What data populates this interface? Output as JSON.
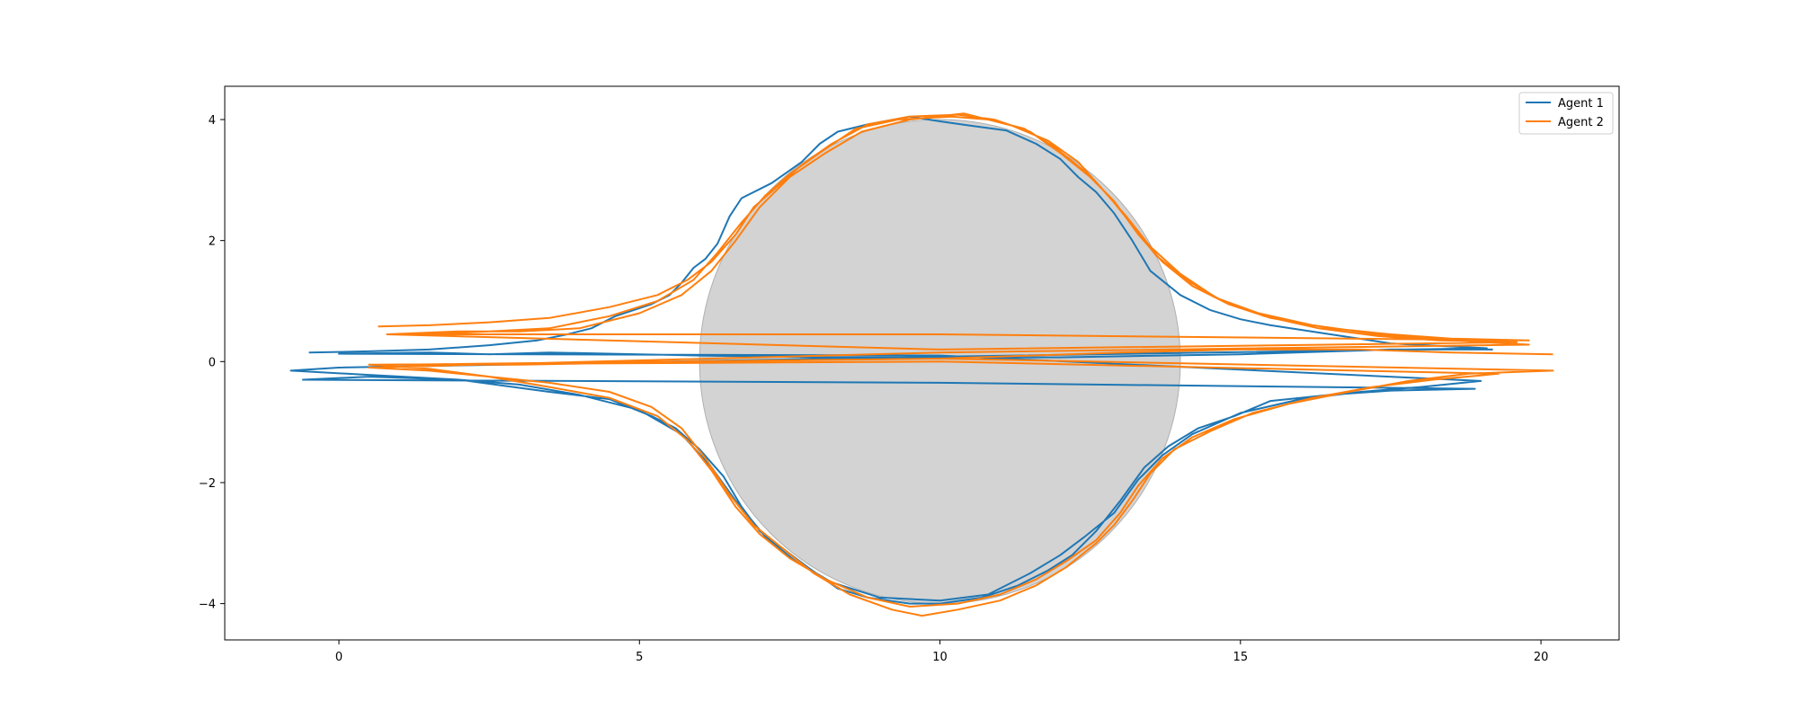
{
  "chart_data": {
    "type": "line",
    "title": "",
    "xlabel": "",
    "ylabel": "",
    "xlim": [
      -1.9,
      21.3
    ],
    "ylim": [
      -4.6,
      4.55
    ],
    "xticks": [
      0,
      5,
      10,
      15,
      20
    ],
    "yticks": [
      -4,
      -2,
      0,
      2,
      4
    ],
    "xtick_labels": [
      "0",
      "5",
      "10",
      "15",
      "20"
    ],
    "ytick_labels": [
      "−4",
      "−2",
      "0",
      "2",
      "4"
    ],
    "grid": false,
    "legend_position": "top-right",
    "obstacle": {
      "shape": "circle",
      "center": [
        10,
        0
      ],
      "radius": 4,
      "color": "#d3d3d3"
    },
    "series": [
      {
        "name": "Agent 1",
        "color": "#1f77b4",
        "paths": [
          [
            [
              -0.5,
              0.15
            ],
            [
              0.5,
              0.17
            ],
            [
              1.5,
              0.2
            ],
            [
              2.5,
              0.27
            ],
            [
              3.3,
              0.35
            ],
            [
              3.8,
              0.45
            ],
            [
              4.2,
              0.55
            ],
            [
              4.6,
              0.75
            ],
            [
              5.2,
              0.95
            ],
            [
              5.5,
              1.1
            ],
            [
              5.7,
              1.3
            ],
            [
              5.9,
              1.55
            ],
            [
              6.1,
              1.7
            ],
            [
              6.3,
              1.95
            ],
            [
              6.5,
              2.4
            ],
            [
              6.7,
              2.7
            ],
            [
              7.2,
              2.95
            ],
            [
              7.7,
              3.3
            ],
            [
              8.0,
              3.6
            ],
            [
              8.3,
              3.8
            ],
            [
              8.8,
              3.92
            ],
            [
              9.5,
              4.05
            ],
            [
              10.0,
              3.97
            ],
            [
              10.5,
              3.9
            ],
            [
              11.1,
              3.82
            ],
            [
              11.6,
              3.6
            ],
            [
              12.0,
              3.35
            ],
            [
              12.3,
              3.05
            ],
            [
              12.6,
              2.8
            ],
            [
              12.9,
              2.45
            ],
            [
              13.2,
              2.0
            ],
            [
              13.5,
              1.5
            ],
            [
              14.0,
              1.1
            ],
            [
              14.5,
              0.85
            ],
            [
              15.0,
              0.7
            ],
            [
              15.5,
              0.6
            ],
            [
              16.5,
              0.45
            ],
            [
              17.5,
              0.3
            ],
            [
              18.5,
              0.25
            ],
            [
              19.1,
              0.22
            ],
            [
              10.0,
              0.08
            ],
            [
              0,
              -0.1
            ],
            [
              -0.8,
              -0.15
            ],
            [
              0.5,
              -0.22
            ],
            [
              2.0,
              -0.3
            ],
            [
              3.5,
              -0.5
            ],
            [
              4.5,
              -0.62
            ],
            [
              5.2,
              -0.9
            ],
            [
              5.6,
              -1.1
            ],
            [
              6.0,
              -1.45
            ],
            [
              6.4,
              -1.9
            ],
            [
              6.7,
              -2.4
            ],
            [
              7.0,
              -2.8
            ],
            [
              7.4,
              -3.1
            ],
            [
              7.8,
              -3.4
            ],
            [
              8.3,
              -3.75
            ],
            [
              8.8,
              -3.9
            ],
            [
              9.5,
              -4.0
            ],
            [
              10.0,
              -4.0
            ],
            [
              10.7,
              -3.9
            ],
            [
              11.3,
              -3.7
            ],
            [
              11.8,
              -3.45
            ],
            [
              12.2,
              -3.2
            ],
            [
              12.6,
              -2.8
            ],
            [
              13.0,
              -2.3
            ],
            [
              13.4,
              -1.75
            ],
            [
              13.8,
              -1.4
            ],
            [
              14.3,
              -1.1
            ],
            [
              14.9,
              -0.9
            ],
            [
              15.5,
              -0.65
            ],
            [
              16.5,
              -0.55
            ],
            [
              17.5,
              -0.48
            ],
            [
              18.9,
              -0.45
            ],
            [
              10.0,
              -0.35
            ],
            [
              -0.6,
              -0.3
            ],
            [
              0.5,
              -0.25
            ],
            [
              2.0,
              -0.3
            ],
            [
              3.0,
              -0.38
            ],
            [
              4.0,
              -0.55
            ],
            [
              5.0,
              -0.8
            ],
            [
              5.7,
              -1.2
            ],
            [
              6.2,
              -1.75
            ],
            [
              6.6,
              -2.3
            ],
            [
              7.1,
              -2.9
            ],
            [
              7.6,
              -3.3
            ],
            [
              8.2,
              -3.65
            ],
            [
              9.0,
              -3.9
            ],
            [
              10.0,
              -3.95
            ],
            [
              10.8,
              -3.85
            ],
            [
              11.5,
              -3.5
            ],
            [
              12.0,
              -3.2
            ],
            [
              12.4,
              -2.9
            ],
            [
              12.9,
              -2.5
            ],
            [
              13.3,
              -1.95
            ],
            [
              13.7,
              -1.55
            ],
            [
              14.2,
              -1.2
            ],
            [
              15.0,
              -0.85
            ],
            [
              16.0,
              -0.62
            ],
            [
              17.0,
              -0.5
            ],
            [
              18.0,
              -0.42
            ],
            [
              19.0,
              -0.32
            ],
            [
              10.0,
              0.1
            ],
            [
              0,
              0.13
            ],
            [
              1.5,
              0.15
            ],
            [
              2.5,
              0.12
            ],
            [
              3.5,
              0.15
            ],
            [
              5.0,
              0.12
            ],
            [
              6.0,
              0.1
            ],
            [
              8.0,
              0.07
            ],
            [
              12.0,
              0.07
            ],
            [
              15.0,
              0.12
            ],
            [
              17.5,
              0.2
            ],
            [
              19.2,
              0.2
            ]
          ]
        ]
      },
      {
        "name": "Agent 2",
        "color": "#ff7f0e",
        "paths": [
          [
            [
              0.65,
              0.58
            ],
            [
              1.5,
              0.6
            ],
            [
              2.5,
              0.65
            ],
            [
              3.5,
              0.72
            ],
            [
              4.5,
              0.9
            ],
            [
              5.3,
              1.1
            ],
            [
              5.8,
              1.35
            ],
            [
              6.2,
              1.65
            ],
            [
              6.6,
              2.1
            ],
            [
              6.9,
              2.55
            ],
            [
              7.3,
              2.9
            ],
            [
              7.7,
              3.25
            ],
            [
              8.2,
              3.6
            ],
            [
              8.8,
              3.92
            ],
            [
              9.5,
              4.05
            ],
            [
              10.3,
              4.08
            ],
            [
              10.9,
              4.0
            ],
            [
              11.5,
              3.8
            ],
            [
              12.0,
              3.45
            ],
            [
              12.5,
              3.05
            ],
            [
              12.9,
              2.65
            ],
            [
              13.3,
              2.1
            ],
            [
              13.7,
              1.65
            ],
            [
              14.2,
              1.25
            ],
            [
              14.8,
              0.95
            ],
            [
              15.5,
              0.72
            ],
            [
              16.5,
              0.55
            ],
            [
              17.5,
              0.45
            ],
            [
              18.5,
              0.38
            ],
            [
              19.8,
              0.35
            ],
            [
              10,
              0.45
            ],
            [
              0.8,
              0.45
            ],
            [
              1.5,
              0.45
            ],
            [
              2.5,
              0.5
            ],
            [
              3.5,
              0.55
            ],
            [
              4.5,
              0.75
            ],
            [
              5.3,
              1.0
            ],
            [
              5.9,
              1.35
            ],
            [
              6.3,
              1.8
            ],
            [
              6.7,
              2.3
            ],
            [
              7.1,
              2.75
            ],
            [
              7.5,
              3.1
            ],
            [
              8.0,
              3.45
            ],
            [
              8.6,
              3.85
            ],
            [
              9.3,
              4.0
            ],
            [
              10.2,
              4.05
            ],
            [
              10.8,
              4.0
            ],
            [
              11.4,
              3.85
            ],
            [
              11.9,
              3.55
            ],
            [
              12.4,
              3.15
            ],
            [
              12.8,
              2.75
            ],
            [
              13.2,
              2.25
            ],
            [
              13.6,
              1.75
            ],
            [
              14.1,
              1.35
            ],
            [
              14.7,
              1.0
            ],
            [
              15.4,
              0.75
            ],
            [
              16.3,
              0.55
            ],
            [
              17.3,
              0.42
            ],
            [
              18.3,
              0.35
            ],
            [
              19.6,
              0.32
            ],
            [
              10,
              0.2
            ],
            [
              0.8,
              0.45
            ],
            [
              2.0,
              0.5
            ],
            [
              3.0,
              0.5
            ],
            [
              4.0,
              0.55
            ],
            [
              5.0,
              0.8
            ],
            [
              5.7,
              1.1
            ],
            [
              6.2,
              1.5
            ],
            [
              6.6,
              2.0
            ],
            [
              7.0,
              2.55
            ],
            [
              7.5,
              3.05
            ],
            [
              8.1,
              3.45
            ],
            [
              8.7,
              3.8
            ],
            [
              9.5,
              4.0
            ],
            [
              10.4,
              4.1
            ],
            [
              11.2,
              3.9
            ],
            [
              11.8,
              3.65
            ],
            [
              12.3,
              3.3
            ],
            [
              12.7,
              2.85
            ],
            [
              13.1,
              2.4
            ],
            [
              13.5,
              1.9
            ],
            [
              14.0,
              1.45
            ],
            [
              14.6,
              1.05
            ],
            [
              15.3,
              0.8
            ],
            [
              16.2,
              0.6
            ],
            [
              17.3,
              0.45
            ],
            [
              18.5,
              0.35
            ],
            [
              19.8,
              0.28
            ],
            [
              10,
              0.15
            ],
            [
              0.5,
              -0.1
            ],
            [
              1.5,
              -0.15
            ],
            [
              2.5,
              -0.25
            ],
            [
              3.5,
              -0.35
            ],
            [
              4.5,
              -0.5
            ],
            [
              5.2,
              -0.75
            ],
            [
              5.7,
              -1.1
            ],
            [
              6.1,
              -1.6
            ],
            [
              6.5,
              -2.2
            ],
            [
              6.9,
              -2.7
            ],
            [
              7.4,
              -3.1
            ],
            [
              7.9,
              -3.5
            ],
            [
              8.5,
              -3.85
            ],
            [
              9.2,
              -4.1
            ],
            [
              9.7,
              -4.2
            ],
            [
              10.3,
              -4.1
            ],
            [
              11.0,
              -3.95
            ],
            [
              11.6,
              -3.7
            ],
            [
              12.1,
              -3.4
            ],
            [
              12.6,
              -3.0
            ],
            [
              12.9,
              -2.7
            ],
            [
              13.2,
              -2.3
            ],
            [
              13.5,
              -1.85
            ],
            [
              13.9,
              -1.45
            ],
            [
              14.5,
              -1.15
            ],
            [
              15.2,
              -0.85
            ],
            [
              16.2,
              -0.6
            ],
            [
              17.2,
              -0.42
            ],
            [
              18.2,
              -0.3
            ],
            [
              19.3,
              -0.2
            ],
            [
              10,
              0
            ],
            [
              0.5,
              -0.05
            ],
            [
              1.5,
              -0.12
            ],
            [
              2.5,
              -0.25
            ],
            [
              3.5,
              -0.42
            ],
            [
              4.5,
              -0.6
            ],
            [
              5.3,
              -0.9
            ],
            [
              5.8,
              -1.3
            ],
            [
              6.2,
              -1.8
            ],
            [
              6.6,
              -2.4
            ],
            [
              7.0,
              -2.85
            ],
            [
              7.5,
              -3.25
            ],
            [
              8.1,
              -3.6
            ],
            [
              8.8,
              -3.9
            ],
            [
              9.5,
              -4.05
            ],
            [
              10.3,
              -4.0
            ],
            [
              11.0,
              -3.85
            ],
            [
              11.6,
              -3.6
            ],
            [
              12.1,
              -3.3
            ],
            [
              12.6,
              -2.95
            ],
            [
              13.0,
              -2.5
            ],
            [
              13.3,
              -2.05
            ],
            [
              13.7,
              -1.6
            ],
            [
              14.2,
              -1.25
            ],
            [
              14.9,
              -0.95
            ],
            [
              15.8,
              -0.7
            ],
            [
              16.8,
              -0.5
            ],
            [
              17.8,
              -0.32
            ],
            [
              18.8,
              -0.2
            ],
            [
              20.2,
              -0.15
            ],
            [
              10,
              0.05
            ],
            [
              1.0,
              -0.05
            ],
            [
              3.0,
              -0.05
            ],
            [
              6.0,
              0.0
            ],
            [
              10.0,
              0.05
            ],
            [
              13.0,
              0.15
            ],
            [
              15.0,
              0.2
            ],
            [
              17.0,
              0.2
            ],
            [
              18.5,
              0.15
            ],
            [
              20.2,
              0.12
            ]
          ]
        ]
      }
    ]
  }
}
